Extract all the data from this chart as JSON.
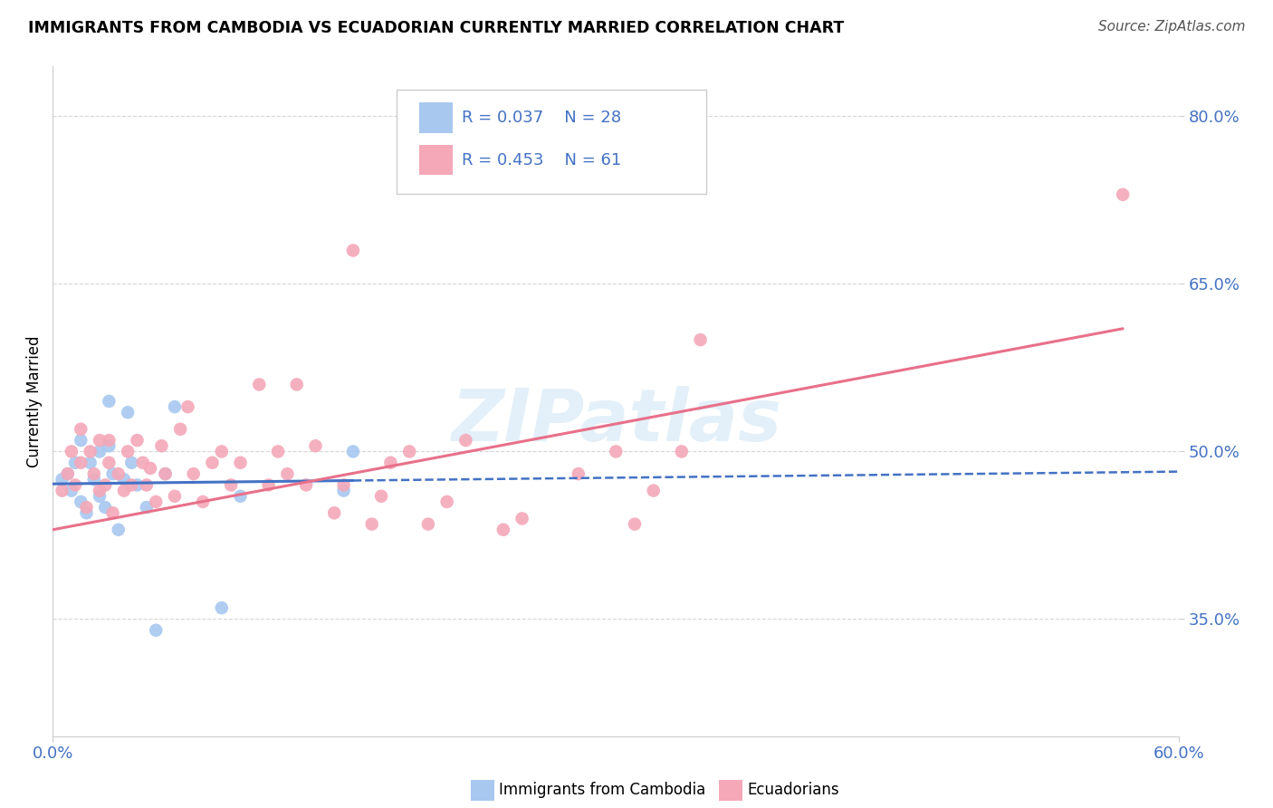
{
  "title": "IMMIGRANTS FROM CAMBODIA VS ECUADORIAN CURRENTLY MARRIED CORRELATION CHART",
  "source": "Source: ZipAtlas.com",
  "ylabel": "Currently Married",
  "ytick_values": [
    0.35,
    0.5,
    0.65,
    0.8
  ],
  "xlim": [
    0.0,
    0.6
  ],
  "ylim": [
    0.245,
    0.845
  ],
  "color_cambodia": "#a8c8f0",
  "color_ecuador": "#f4a8b8",
  "color_blue_text": "#4472c4",
  "trendline_cambodia_color": "#4472c4",
  "trendline_ecuador_color": "#e8708a",
  "cambodia_x": [
    0.005,
    0.008,
    0.01,
    0.012,
    0.015,
    0.015,
    0.018,
    0.02,
    0.022,
    0.025,
    0.025,
    0.028,
    0.03,
    0.03,
    0.032,
    0.035,
    0.038,
    0.04,
    0.042,
    0.045,
    0.05,
    0.055,
    0.06,
    0.065,
    0.09,
    0.1,
    0.155,
    0.16
  ],
  "cambodia_y": [
    0.475,
    0.48,
    0.465,
    0.49,
    0.51,
    0.455,
    0.445,
    0.49,
    0.475,
    0.5,
    0.46,
    0.45,
    0.505,
    0.545,
    0.48,
    0.43,
    0.475,
    0.535,
    0.49,
    0.47,
    0.45,
    0.34,
    0.48,
    0.54,
    0.36,
    0.46,
    0.465,
    0.5
  ],
  "ecuador_x": [
    0.005,
    0.008,
    0.01,
    0.012,
    0.015,
    0.015,
    0.018,
    0.02,
    0.022,
    0.025,
    0.025,
    0.028,
    0.03,
    0.03,
    0.032,
    0.035,
    0.038,
    0.04,
    0.042,
    0.045,
    0.048,
    0.05,
    0.052,
    0.055,
    0.058,
    0.06,
    0.065,
    0.068,
    0.072,
    0.075,
    0.08,
    0.085,
    0.09,
    0.095,
    0.1,
    0.11,
    0.115,
    0.12,
    0.125,
    0.13,
    0.135,
    0.14,
    0.15,
    0.155,
    0.16,
    0.17,
    0.175,
    0.18,
    0.19,
    0.2,
    0.21,
    0.22,
    0.24,
    0.25,
    0.28,
    0.3,
    0.31,
    0.32,
    0.335,
    0.345,
    0.57
  ],
  "ecuador_y": [
    0.465,
    0.48,
    0.5,
    0.47,
    0.49,
    0.52,
    0.45,
    0.5,
    0.48,
    0.465,
    0.51,
    0.47,
    0.49,
    0.51,
    0.445,
    0.48,
    0.465,
    0.5,
    0.47,
    0.51,
    0.49,
    0.47,
    0.485,
    0.455,
    0.505,
    0.48,
    0.46,
    0.52,
    0.54,
    0.48,
    0.455,
    0.49,
    0.5,
    0.47,
    0.49,
    0.56,
    0.47,
    0.5,
    0.48,
    0.56,
    0.47,
    0.505,
    0.445,
    0.47,
    0.68,
    0.435,
    0.46,
    0.49,
    0.5,
    0.435,
    0.455,
    0.51,
    0.43,
    0.44,
    0.48,
    0.5,
    0.435,
    0.465,
    0.5,
    0.6,
    0.73
  ],
  "cam_trend_x0": 0.0,
  "cam_trend_x_solid_end": 0.16,
  "cam_trend_x_dash_end": 0.6,
  "cam_trend_y0": 0.471,
  "cam_trend_y_solid_end": 0.474,
  "cam_trend_y_dash_end": 0.482,
  "ecu_trend_x0": 0.0,
  "ecu_trend_x_end": 0.57,
  "ecu_trend_y0": 0.43,
  "ecu_trend_y_end": 0.61
}
